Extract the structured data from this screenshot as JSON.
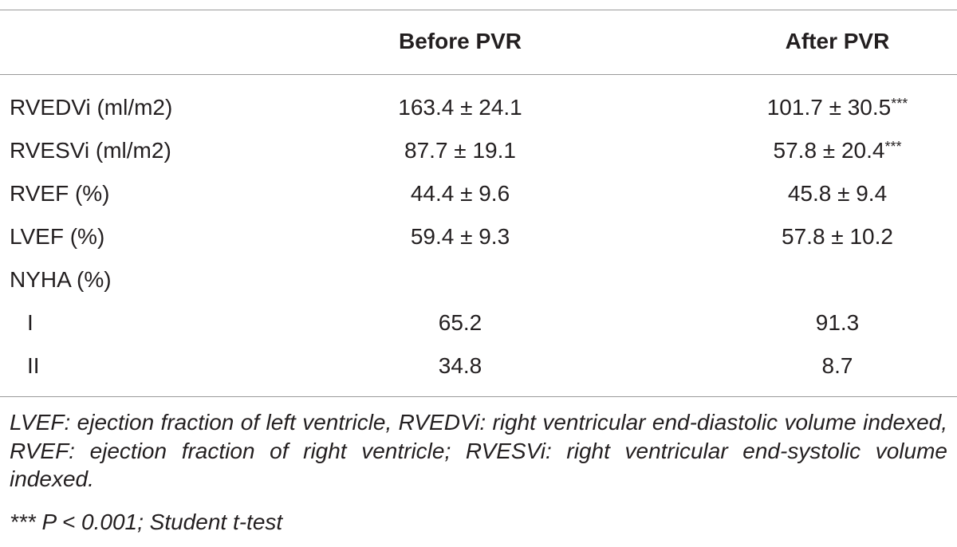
{
  "table": {
    "header": [
      "Before PVR",
      "After PVR"
    ],
    "rows": [
      [
        "RVEDVi (ml/m2)",
        "163.4 ± 24.1",
        {
          "text": "101.7 ± 30.5",
          "sup": "***"
        }
      ],
      [
        "RVESVi (ml/m2)",
        "87.7 ± 19.1",
        {
          "text": "57.8 ± 20.4",
          "sup": "***"
        }
      ],
      [
        "RVEF (%)",
        "44.4 ± 9.6",
        "45.8 ± 9.4"
      ],
      [
        "LVEF (%)",
        "59.4 ± 9.3",
        "57.8 ± 10.2"
      ],
      [
        "NYHA (%)",
        null,
        null
      ],
      [
        "I",
        "65.2",
        "91.3"
      ],
      [
        "II",
        "34.8",
        "8.7"
      ]
    ]
  },
  "footnotes": [
    "LVEF: ejection fraction of left ventricle, RVEDVi: right ventricular end-diastolic volume indexed, RVEF: ejection fraction of right ventricle; RVESVi: right ventricular end-systolic volume indexed.",
    "*** P < 0.001; Student t-test"
  ]
}
